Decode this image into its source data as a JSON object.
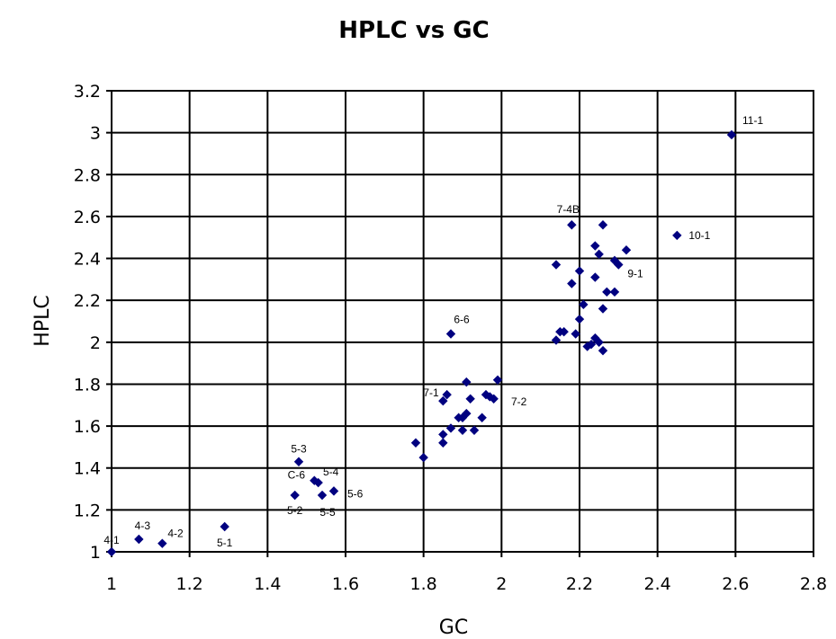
{
  "chart_data": {
    "type": "scatter",
    "title": "HPLC vs GC",
    "xlabel": "GC",
    "ylabel": "HPLC",
    "xlim": [
      1,
      2.8
    ],
    "ylim": [
      1,
      3.2
    ],
    "x_ticks": [
      "1",
      "1.2",
      "1.4",
      "1.6",
      "1.8",
      "2",
      "2.2",
      "2.4",
      "2.6",
      "2.8"
    ],
    "y_ticks": [
      "1",
      "1.2",
      "1.4",
      "1.6",
      "1.8",
      "2",
      "2.2",
      "2.4",
      "2.6",
      "2.8",
      "3",
      "3.2"
    ],
    "grid": true,
    "legend": "none",
    "marker_color": "#000080",
    "series": [
      {
        "points": [
          [
            1.0,
            1.0
          ],
          [
            1.07,
            1.06
          ],
          [
            1.13,
            1.04
          ],
          [
            1.29,
            1.12
          ],
          [
            1.47,
            1.27
          ],
          [
            1.48,
            1.43
          ],
          [
            1.52,
            1.34
          ],
          [
            1.53,
            1.33
          ],
          [
            1.54,
            1.27
          ],
          [
            1.57,
            1.29
          ],
          [
            1.78,
            1.52
          ],
          [
            1.8,
            1.45
          ],
          [
            1.85,
            1.52
          ],
          [
            1.85,
            1.56
          ],
          [
            1.85,
            1.72
          ],
          [
            1.86,
            1.75
          ],
          [
            1.87,
            1.59
          ],
          [
            1.89,
            1.64
          ],
          [
            1.9,
            1.64
          ],
          [
            1.9,
            1.58
          ],
          [
            1.91,
            1.81
          ],
          [
            1.91,
            1.66
          ],
          [
            1.92,
            1.73
          ],
          [
            1.93,
            1.58
          ],
          [
            1.95,
            1.64
          ],
          [
            1.96,
            1.75
          ],
          [
            1.97,
            1.74
          ],
          [
            1.98,
            1.73
          ],
          [
            1.99,
            1.82
          ],
          [
            1.87,
            2.04
          ],
          [
            2.14,
            2.37
          ],
          [
            2.14,
            2.01
          ],
          [
            2.15,
            2.05
          ],
          [
            2.16,
            2.05
          ],
          [
            2.18,
            2.56
          ],
          [
            2.18,
            2.28
          ],
          [
            2.19,
            2.04
          ],
          [
            2.2,
            2.11
          ],
          [
            2.2,
            2.34
          ],
          [
            2.21,
            2.18
          ],
          [
            2.22,
            1.98
          ],
          [
            2.23,
            1.99
          ],
          [
            2.24,
            2.46
          ],
          [
            2.24,
            2.31
          ],
          [
            2.24,
            2.02
          ],
          [
            2.25,
            2.0
          ],
          [
            2.25,
            2.42
          ],
          [
            2.26,
            2.56
          ],
          [
            2.26,
            2.16
          ],
          [
            2.26,
            1.96
          ],
          [
            2.27,
            2.24
          ],
          [
            2.29,
            2.24
          ],
          [
            2.29,
            2.39
          ],
          [
            2.3,
            2.37
          ],
          [
            2.32,
            2.44
          ],
          [
            2.45,
            2.51
          ],
          [
            2.59,
            2.99
          ]
        ]
      }
    ],
    "annotations": [
      {
        "text": "4-1",
        "x": 1.0,
        "y": 1.0
      },
      {
        "text": "4-3",
        "x": 1.07,
        "y": 1.06
      },
      {
        "text": "4-2",
        "x": 1.13,
        "y": 1.04
      },
      {
        "text": "5-1",
        "x": 1.29,
        "y": 1.12
      },
      {
        "text": "5-3",
        "x": 1.48,
        "y": 1.43
      },
      {
        "text": "C-6",
        "x": 1.52,
        "y": 1.34
      },
      {
        "text": "5-4",
        "x": 1.53,
        "y": 1.33
      },
      {
        "text": "5-2",
        "x": 1.47,
        "y": 1.27
      },
      {
        "text": "5-5",
        "x": 1.54,
        "y": 1.27
      },
      {
        "text": "5-6",
        "x": 1.57,
        "y": 1.29
      },
      {
        "text": "6-6",
        "x": 1.87,
        "y": 2.04
      },
      {
        "text": "7-1",
        "x": 1.86,
        "y": 1.75
      },
      {
        "text": "7-2",
        "x": 1.98,
        "y": 1.73
      },
      {
        "text": "7-4B",
        "x": 2.18,
        "y": 2.56
      },
      {
        "text": "9-1",
        "x": 2.3,
        "y": 2.37
      },
      {
        "text": "10-1",
        "x": 2.45,
        "y": 2.51
      },
      {
        "text": "11-1",
        "x": 2.59,
        "y": 2.99
      }
    ]
  }
}
